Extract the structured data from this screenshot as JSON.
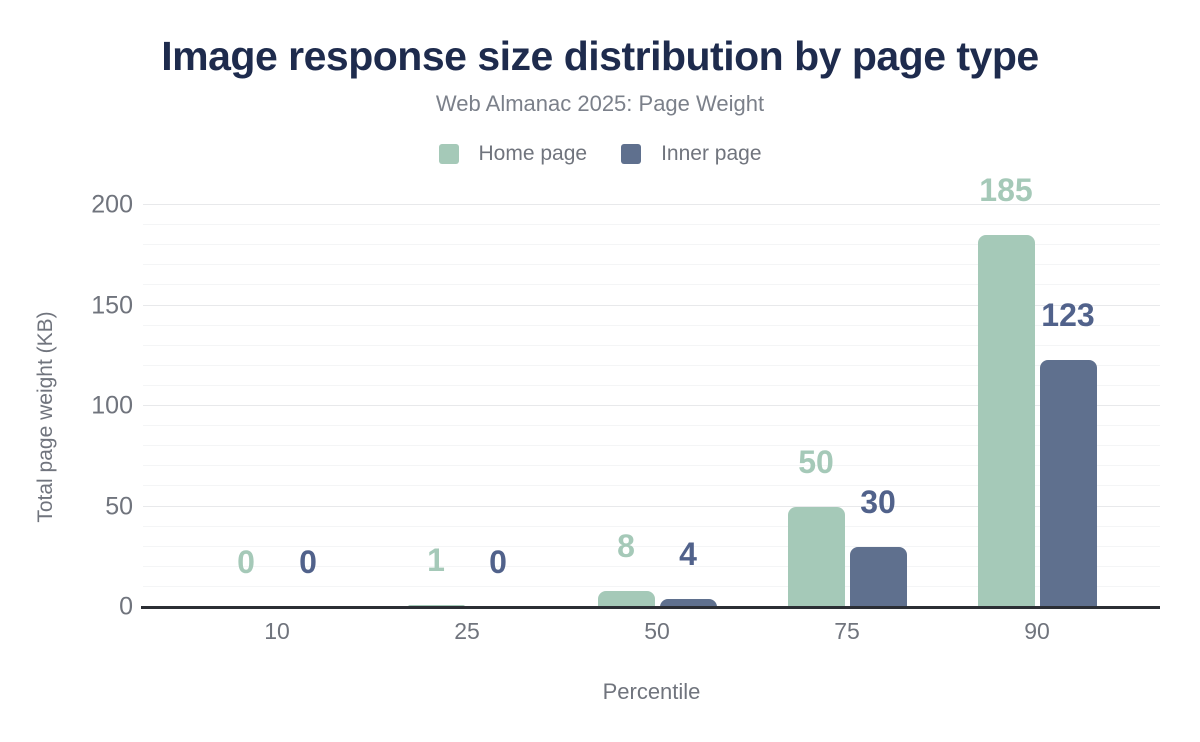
{
  "chart_data": {
    "type": "bar",
    "title": "Image response size distribution by page type",
    "subtitle": "Web Almanac 2025: Page Weight",
    "xlabel": "Percentile",
    "ylabel": "Total page weight (KB)",
    "categories": [
      "10",
      "25",
      "50",
      "75",
      "90"
    ],
    "series": [
      {
        "name": "Home page",
        "color": "#a5c9b8",
        "label_color": "#a5c9b8",
        "values": [
          0,
          1,
          8,
          50,
          185
        ]
      },
      {
        "name": "Inner page",
        "color": "#5f708e",
        "label_color": "#51628b",
        "values": [
          0,
          0,
          4,
          30,
          123
        ]
      }
    ],
    "ylim": [
      0,
      200
    ],
    "yticks": [
      0,
      50,
      100,
      150,
      200
    ],
    "minor_grid_step": 10,
    "grid": "horizontal",
    "legend_position": "top",
    "colors": {
      "title": "#1e2b4d",
      "subtitle": "#7b808a",
      "axis_text": "#70747d",
      "axis_line": "#2b2e34",
      "grid_major": "#e8e9eb",
      "grid_minor": "#f4f5f6",
      "background": "#ffffff"
    }
  }
}
